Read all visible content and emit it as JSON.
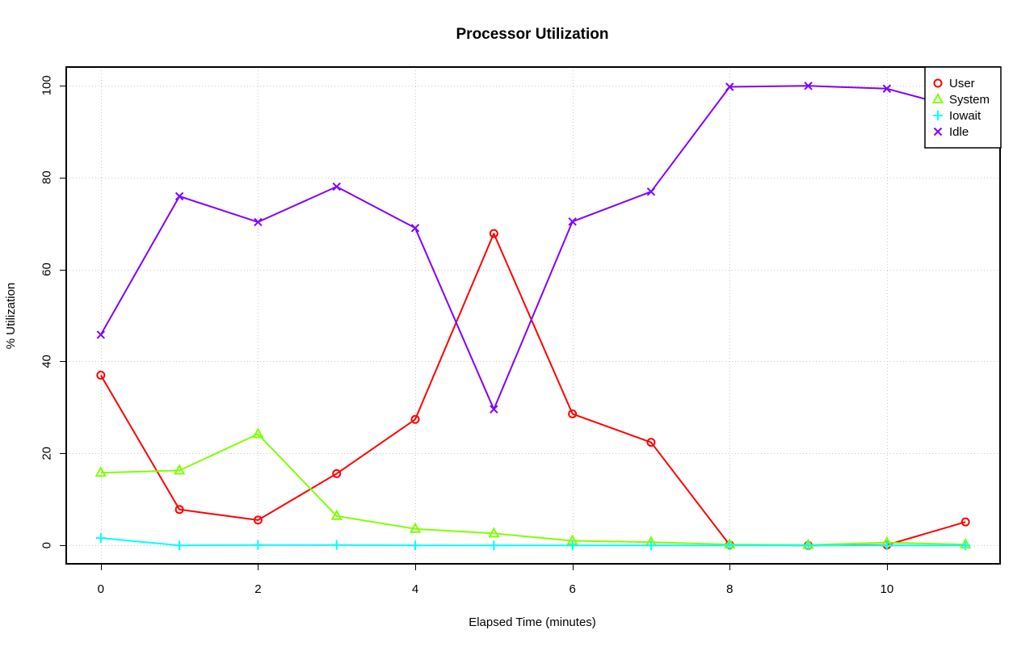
{
  "chart_data": {
    "type": "line",
    "title": "Processor Utilization",
    "xlabel": "Elapsed Time (minutes)",
    "ylabel": "% Utilization",
    "x": [
      0,
      1,
      2,
      3,
      4,
      5,
      6,
      7,
      8,
      9,
      10,
      11
    ],
    "xlim": [
      -0.44,
      11.44
    ],
    "ylim": [
      -4,
      104
    ],
    "xticks": [
      0,
      2,
      4,
      6,
      8,
      10
    ],
    "yticks": [
      0,
      20,
      40,
      60,
      80,
      100
    ],
    "grid": true,
    "legend_position": "top-right",
    "series": [
      {
        "name": "User",
        "color": "#ff0000",
        "marker": "circle",
        "values": [
          37,
          7.8,
          5.5,
          15.6,
          27.4,
          67.8,
          28.6,
          22.4,
          0.1,
          0.0,
          0.1,
          5.1
        ]
      },
      {
        "name": "System",
        "color": "#80ff00",
        "marker": "triangle",
        "values": [
          15.8,
          16.3,
          24.2,
          6.4,
          3.6,
          2.6,
          1.0,
          0.7,
          0.2,
          0.1,
          0.6,
          0.2
        ]
      },
      {
        "name": "Iowait",
        "color": "#00ffff",
        "marker": "plus",
        "values": [
          1.6,
          0.0,
          0.1,
          0.1,
          0.0,
          0.0,
          0.0,
          0.0,
          0.0,
          0.0,
          0.0,
          0.0
        ]
      },
      {
        "name": "Idle",
        "color": "#8000ff",
        "marker": "cross",
        "values": [
          45.8,
          75.9,
          70.3,
          78.0,
          69.0,
          29.6,
          70.4,
          76.9,
          99.7,
          99.9,
          99.3,
          94.7
        ]
      }
    ]
  }
}
